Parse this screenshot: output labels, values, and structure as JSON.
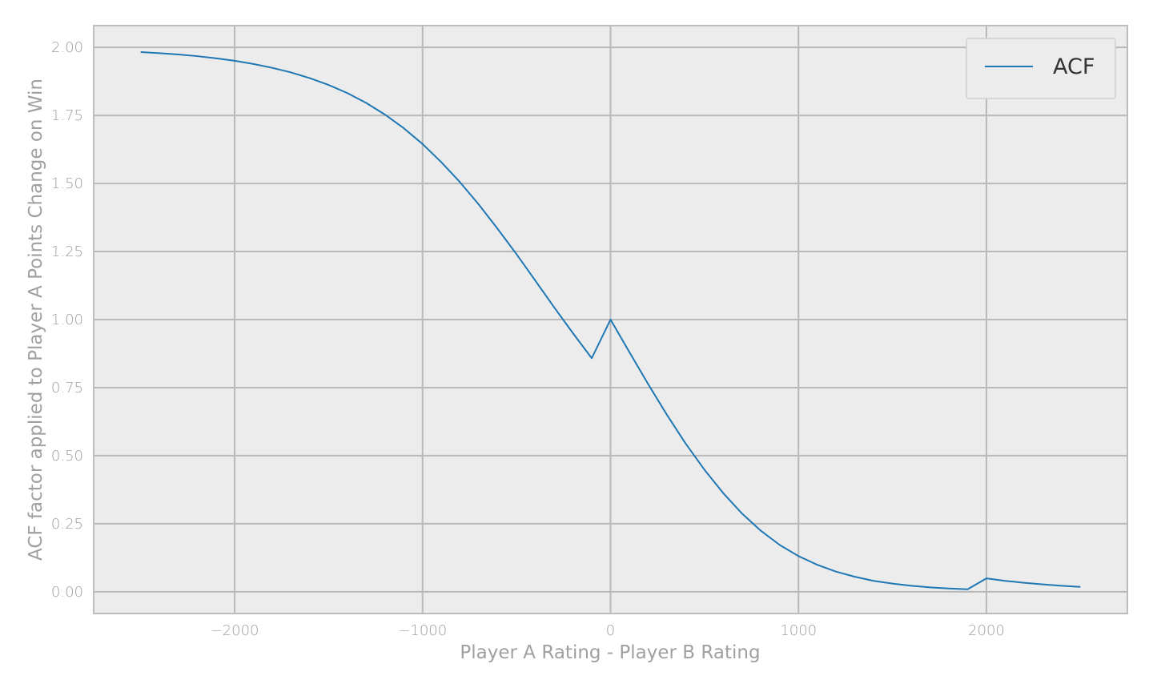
{
  "chart_data": {
    "type": "line",
    "title": "",
    "xlabel": "Player A Rating - Player B Rating",
    "ylabel": "ACF factor applied to Player A Points Change on Win",
    "xlim": [
      -2750,
      2750
    ],
    "ylim": [
      -0.08,
      2.08
    ],
    "x_ticks": [
      -2000,
      -1000,
      0,
      1000,
      2000
    ],
    "x_tick_labels": [
      "−2000",
      "−1000",
      "0",
      "1000",
      "2000"
    ],
    "y_ticks": [
      0.0,
      0.25,
      0.5,
      0.75,
      1.0,
      1.25,
      1.5,
      1.75,
      2.0
    ],
    "y_tick_labels": [
      "0.00",
      "0.25",
      "0.50",
      "0.75",
      "1.00",
      "1.25",
      "1.50",
      "1.75",
      "2.00"
    ],
    "grid": true,
    "legend_position": "top-right",
    "series": [
      {
        "name": "ACF",
        "color": "#1f77b4",
        "x": [
          -2500,
          -2400,
          -2300,
          -2200,
          -2100,
          -2000,
          -1900,
          -1800,
          -1700,
          -1600,
          -1500,
          -1400,
          -1300,
          -1200,
          -1100,
          -1000,
          -900,
          -800,
          -700,
          -600,
          -500,
          -400,
          -300,
          -200,
          -100,
          0,
          100,
          200,
          300,
          400,
          500,
          600,
          700,
          800,
          900,
          1000,
          1100,
          1200,
          1300,
          1400,
          1500,
          1600,
          1700,
          1800,
          1900,
          2000,
          2100,
          2200,
          2300,
          2400,
          2500
        ],
        "y": [
          1.983,
          1.979,
          1.974,
          1.968,
          1.96,
          1.951,
          1.939,
          1.925,
          1.908,
          1.887,
          1.862,
          1.832,
          1.796,
          1.753,
          1.703,
          1.645,
          1.578,
          1.504,
          1.422,
          1.333,
          1.24,
          1.143,
          1.045,
          0.95,
          0.858,
          1.0,
          0.881,
          0.763,
          0.65,
          0.544,
          0.448,
          0.362,
          0.287,
          0.224,
          0.172,
          0.131,
          0.099,
          0.074,
          0.055,
          0.04,
          0.03,
          0.022,
          0.016,
          0.012,
          0.009,
          0.049,
          0.04,
          0.033,
          0.027,
          0.022,
          0.018
        ]
      }
    ]
  }
}
